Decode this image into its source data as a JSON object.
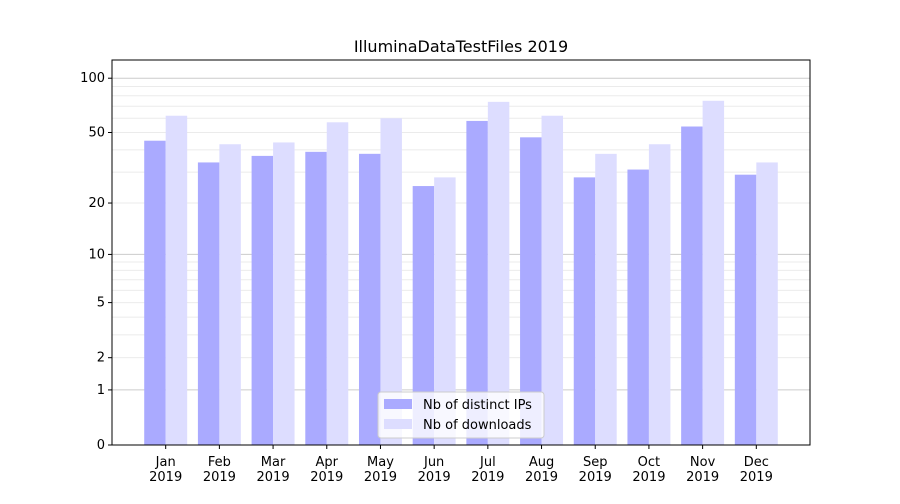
{
  "chart_data": {
    "type": "bar",
    "title": "IlluminaDataTestFiles 2019",
    "xlabel": "",
    "ylabel": "",
    "yscale": "symlog (log10 of 1+x)",
    "ylim": [
      0,
      126
    ],
    "yticks": [
      0,
      1,
      2,
      5,
      10,
      20,
      50,
      100
    ],
    "grid": true,
    "legend_position": "lower center",
    "categories": [
      "Jan\n2019",
      "Feb\n2019",
      "Mar\n2019",
      "Apr\n2019",
      "May\n2019",
      "Jun\n2019",
      "Jul\n2019",
      "Aug\n2019",
      "Sep\n2019",
      "Oct\n2019",
      "Nov\n2019",
      "Dec\n2019"
    ],
    "series": [
      {
        "name": "Nb of distinct IPs",
        "color": "#aaaaff",
        "values": [
          45,
          34,
          37,
          39,
          38,
          25,
          58,
          47,
          28,
          31,
          54,
          29
        ]
      },
      {
        "name": "Nb of downloads",
        "color": "#ddddff",
        "values": [
          62,
          43,
          44,
          57,
          60,
          28,
          74,
          62,
          38,
          43,
          75,
          34
        ]
      }
    ]
  }
}
